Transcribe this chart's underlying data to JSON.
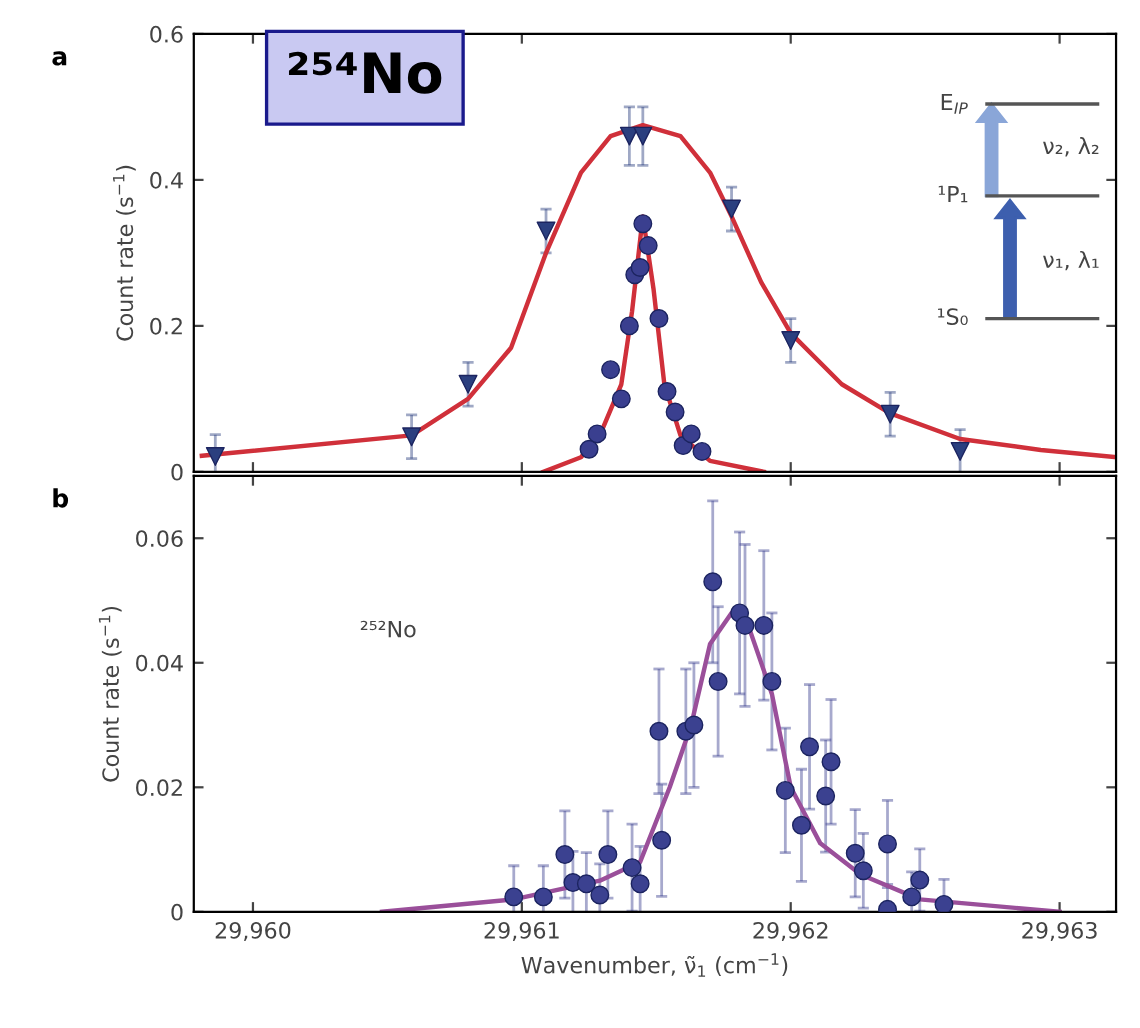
{
  "chart_data": [
    {
      "type": "scatter",
      "title": "a",
      "ylabel": "Count rate (s$^{−1}$)",
      "xlim": [
        29959.78,
        29963.21
      ],
      "ylim": [
        0,
        0.6
      ],
      "yticks": [
        0,
        0.2,
        0.4,
        0.6
      ],
      "xticks": [
        29960,
        29961,
        29962,
        29963
      ],
      "tick_labels": "y",
      "grid": false,
      "legend": false,
      "annotations": [
        "²⁵⁴No",
        "E$_{IP}$",
        "¹P₁",
        "¹S₀",
        "ν₂, λ₂",
        "ν₁, λ₁"
      ],
      "series": [
        {
          "marker": "triangle",
          "color": "#2b3f7f",
          "x": [
            29959.86,
            29960.59,
            29960.8,
            29961.09,
            29961.4,
            29961.45,
            29961.78,
            29962,
            29962.37,
            29962.63
          ],
          "values": [
            0.021,
            0.048,
            0.12,
            0.33,
            0.46,
            0.46,
            0.36,
            0.18,
            0.079,
            0.028
          ],
          "errors": [
            0.03,
            0.03,
            0.03,
            0.03,
            0.04,
            0.04,
            0.03,
            0.03,
            0.03,
            0.03
          ]
        },
        {
          "marker": "circle",
          "color": "#3a3f8f",
          "x": [
            29961.25,
            29961.28,
            29961.33,
            29961.37,
            29961.4,
            29961.42,
            29961.44,
            29961.45,
            29961.47,
            29961.51,
            29961.54,
            29961.57,
            29961.6,
            29961.63,
            29961.67
          ],
          "values": [
            0.031,
            0.052,
            0.14,
            0.1,
            0.2,
            0.27,
            0.28,
            0.34,
            0.31,
            0.21,
            0.11,
            0.082,
            0.036,
            0.052,
            0.028
          ]
        },
        {
          "type": "line",
          "marker": "none",
          "color": "#d0303a",
          "x": [
            29959.81,
            29960.59,
            29960.8,
            29960.96,
            29961.09,
            29961.22,
            29961.33,
            29961.45,
            29961.59,
            29961.7,
            29961.78,
            29961.89,
            29962,
            29962.19,
            29962.37,
            29962.63,
            29962.93,
            29963.21
          ],
          "values": [
            0.022,
            0.05,
            0.1,
            0.17,
            0.3,
            0.41,
            0.46,
            0.475,
            0.46,
            0.41,
            0.35,
            0.26,
            0.19,
            0.12,
            0.08,
            0.045,
            0.03,
            0.02
          ]
        },
        {
          "type": "line",
          "marker": "none",
          "color": "#d0303a",
          "x": [
            29961.08,
            29961.22,
            29961.29,
            29961.37,
            29961.41,
            29961.45,
            29961.49,
            29961.53,
            29961.59,
            29961.7,
            29961.9
          ],
          "values": [
            0,
            0.02,
            0.05,
            0.12,
            0.22,
            0.35,
            0.25,
            0.12,
            0.05,
            0.015,
            0
          ]
        }
      ]
    },
    {
      "type": "scatter",
      "title": "b",
      "xlabel": "Wavenumber, ν̃$_{1}$ (cm$^{−1}$)",
      "ylabel": "Count rate (s$^{−1}$)",
      "xlim": [
        29959.78,
        29963.21
      ],
      "ylim": [
        0,
        0.07
      ],
      "yticks": [
        0,
        0.02,
        0.04,
        0.06
      ],
      "xticks": [
        {
          "value": 29960,
          "label": "29,960"
        },
        {
          "value": 29961,
          "label": "29,961"
        },
        {
          "value": 29962,
          "label": "29,962"
        },
        {
          "value": 29963,
          "label": "29,963"
        }
      ],
      "grid": false,
      "legend": false,
      "annotations": [
        "²⁵²No"
      ],
      "series": [
        {
          "marker": "circle",
          "color": "#3b4190",
          "x": [
            29960.97,
            29961.08,
            29961.16,
            29961.19,
            29961.24,
            29961.29,
            29961.32,
            29961.41,
            29961.44,
            29961.51,
            29961.52,
            29961.61,
            29961.64,
            29961.71,
            29961.73,
            29961.81,
            29961.83,
            29961.9,
            29961.93,
            29961.98,
            29962.04,
            29962.07,
            29962.13,
            29962.15,
            29962.24,
            29962.27,
            29962.36,
            29962.36,
            29962.45,
            29962.48,
            29962.57
          ],
          "values": [
            0.0024,
            0.0024,
            0.0092,
            0.0047,
            0.0045,
            0.0027,
            0.0092,
            0.0071,
            0.0045,
            0.029,
            0.0115,
            0.029,
            0.03,
            0.053,
            0.037,
            0.048,
            0.046,
            0.046,
            0.037,
            0.0195,
            0.0139,
            0.0265,
            0.0186,
            0.0241,
            0.0094,
            0.0066,
            0.0109,
            0.0004,
            0.0024,
            0.0051,
            0.0012
          ],
          "errors": [
            0.005,
            0.005,
            0.007,
            0.005,
            0.005,
            0.005,
            0.007,
            0.007,
            0.006,
            0.01,
            0.009,
            0.01,
            0.01,
            0.013,
            0.012,
            0.013,
            0.013,
            0.012,
            0.011,
            0.01,
            0.009,
            0.01,
            0.009,
            0.01,
            0.007,
            0.006,
            0.007,
            0.004,
            0.004,
            0.005,
            0.004
          ]
        },
        {
          "type": "line",
          "marker": "none",
          "color": "#9a4f9a",
          "x": [
            29960.48,
            29960.97,
            29961.29,
            29961.44,
            29961.55,
            29961.63,
            29961.7,
            29961.78,
            29961.85,
            29961.93,
            29962,
            29962.11,
            29962.26,
            29962.48,
            29963
          ],
          "values": [
            0,
            0.002,
            0.005,
            0.008,
            0.02,
            0.03,
            0.043,
            0.048,
            0.045,
            0.035,
            0.02,
            0.011,
            0.006,
            0.002,
            0
          ]
        }
      ]
    }
  ]
}
